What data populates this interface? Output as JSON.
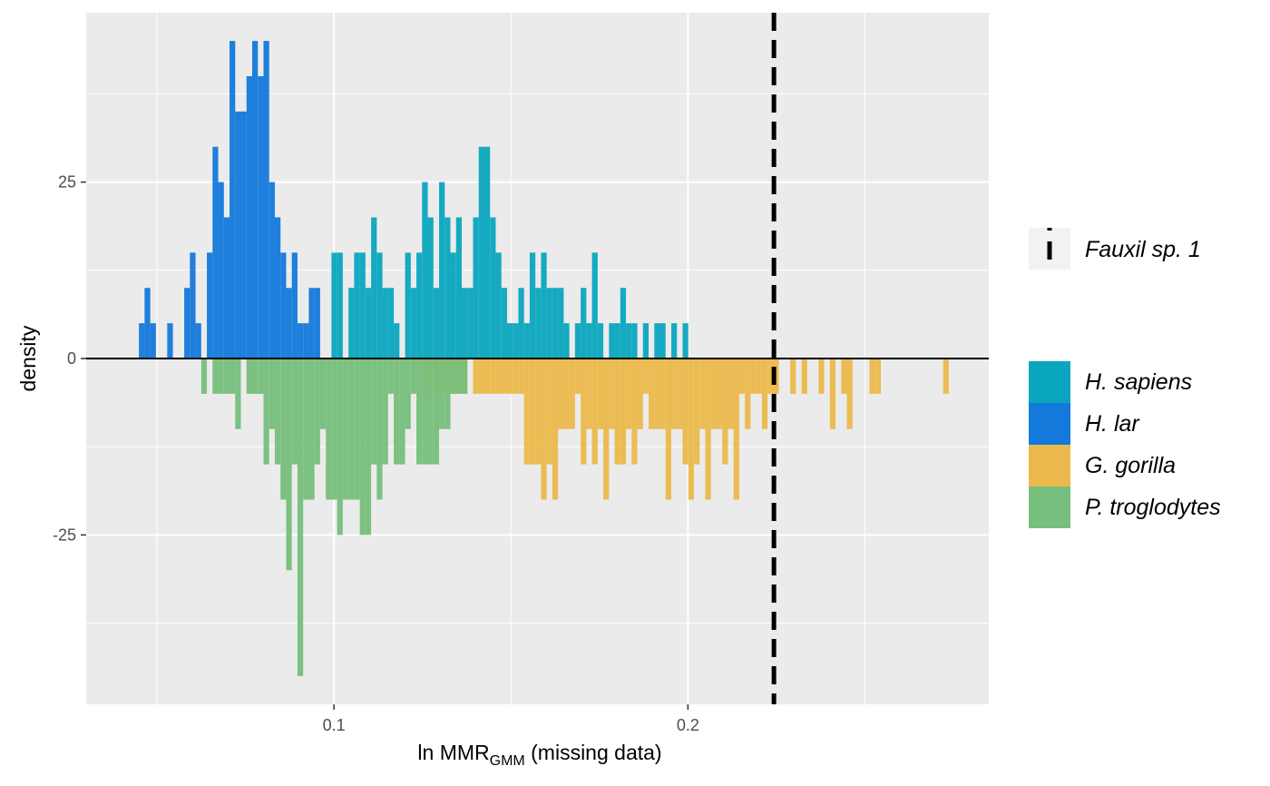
{
  "chart_data": {
    "type": "bar",
    "subtype": "mirrored histogram (density)",
    "xlabel": {
      "main": "ln MMR",
      "subscript": "GMM",
      "suffix": " (missing data)"
    },
    "ylabel": "density",
    "xlim": [
      0.03,
      0.285
    ],
    "ylim": [
      -49,
      49
    ],
    "bin_width": 0.0016,
    "x_ticks": [
      {
        "value": 0.1,
        "label": "0.1"
      },
      {
        "value": 0.2,
        "label": "0.2"
      }
    ],
    "y_ticks": [
      {
        "value": 25,
        "label": "25"
      },
      {
        "value": 0,
        "label": "0"
      },
      {
        "value": -25,
        "label": "-25"
      }
    ],
    "x_minor_gridlines": [
      0.05,
      0.15,
      0.25
    ],
    "y_minor_gridlines": [
      37.5,
      12.5,
      -12.5,
      -37.5
    ],
    "grid": true,
    "background": "#ebebeb",
    "zero_line": true,
    "reference_line": {
      "x": 0.2243,
      "style": "dashed",
      "color": "#000000",
      "label": "Fauxil sp. 1"
    },
    "legend_placement": "right",
    "legend_groups": [
      {
        "entries": [
          {
            "label": "Fauxil sp. 1",
            "key": "dashed-line"
          }
        ]
      },
      {
        "entries": [
          {
            "label": "H. sapiens",
            "color": "#0aa6bf"
          },
          {
            "label": "H. lar",
            "color": "#1379db"
          },
          {
            "label": "G. gorilla",
            "color": "#ebb94b"
          },
          {
            "label": "P. troglodytes",
            "color": "#77bf7c"
          }
        ]
      }
    ],
    "series": [
      {
        "name": "H. lar",
        "direction": "up",
        "color": "#1379db",
        "x": [
          0.0457,
          0.0473,
          0.0489,
          0.0537,
          0.0585,
          0.0601,
          0.0617,
          0.0649,
          0.0665,
          0.0681,
          0.0697,
          0.0713,
          0.0729,
          0.0745,
          0.0761,
          0.0777,
          0.0793,
          0.0809,
          0.0825,
          0.0841,
          0.0857,
          0.0873,
          0.0889,
          0.0905,
          0.0921,
          0.0937,
          0.0953
        ],
        "values": [
          5,
          10,
          5,
          5,
          10,
          15,
          5,
          15,
          30,
          25,
          20,
          45,
          35,
          35,
          40,
          45,
          40,
          45,
          25,
          20,
          15,
          10,
          15,
          5,
          5,
          10,
          10
        ]
      },
      {
        "name": "H. sapiens",
        "direction": "up",
        "color": "#0aa6bf",
        "x": [
          0.1001,
          0.1017,
          0.1049,
          0.1065,
          0.1081,
          0.1097,
          0.1113,
          0.1129,
          0.1145,
          0.1161,
          0.1177,
          0.1209,
          0.1225,
          0.1241,
          0.1257,
          0.1273,
          0.1289,
          0.1305,
          0.1321,
          0.1337,
          0.1353,
          0.1369,
          0.1385,
          0.1401,
          0.1417,
          0.1433,
          0.1449,
          0.1465,
          0.1481,
          0.1497,
          0.1513,
          0.1529,
          0.1545,
          0.1561,
          0.1577,
          0.1593,
          0.1609,
          0.1625,
          0.1641,
          0.1657,
          0.1689,
          0.1705,
          0.1721,
          0.1737,
          0.1753,
          0.1785,
          0.1801,
          0.1817,
          0.1833,
          0.1849,
          0.1881,
          0.1913,
          0.1929,
          0.1961,
          0.1993
        ],
        "values": [
          15,
          15,
          10,
          15,
          15,
          10,
          20,
          15,
          10,
          10,
          5,
          15,
          10,
          15,
          25,
          20,
          10,
          25,
          20,
          15,
          20,
          10,
          10,
          20,
          30,
          30,
          20,
          15,
          10,
          5,
          5,
          10,
          5,
          15,
          10,
          15,
          10,
          10,
          10,
          5,
          5,
          10,
          5,
          15,
          5,
          5,
          5,
          10,
          5,
          5,
          5,
          5,
          5,
          5,
          5
        ]
      },
      {
        "name": "G. gorilla",
        "direction": "down",
        "color": "#ebb94b",
        "x": [
          0.1257,
          0.1273,
          0.1289,
          0.1305,
          0.1321,
          0.1337,
          0.1353,
          0.1369,
          0.1401,
          0.1417,
          0.1433,
          0.1449,
          0.1465,
          0.1481,
          0.1497,
          0.1513,
          0.1529,
          0.1545,
          0.1561,
          0.1577,
          0.1593,
          0.1609,
          0.1625,
          0.1641,
          0.1657,
          0.1673,
          0.1689,
          0.1705,
          0.1721,
          0.1737,
          0.1753,
          0.1769,
          0.1785,
          0.1801,
          0.1817,
          0.1833,
          0.1849,
          0.1865,
          0.1881,
          0.1897,
          0.1913,
          0.1929,
          0.1945,
          0.1961,
          0.1977,
          0.1993,
          0.2009,
          0.2025,
          0.2041,
          0.2057,
          0.2073,
          0.2089,
          0.2105,
          0.2121,
          0.2137,
          0.2153,
          0.2169,
          0.2185,
          0.2201,
          0.2217,
          0.2233,
          0.2249,
          0.2297,
          0.2329,
          0.2377,
          0.2409,
          0.2441,
          0.2457,
          0.2521,
          0.2537,
          0.2729
        ],
        "values": [
          5,
          5,
          5,
          5,
          5,
          5,
          5,
          5,
          5,
          5,
          5,
          5,
          5,
          5,
          5,
          5,
          5,
          15,
          15,
          15,
          20,
          15,
          20,
          10,
          10,
          10,
          5,
          15,
          10,
          15,
          10,
          20,
          10,
          15,
          15,
          10,
          15,
          10,
          5,
          10,
          10,
          10,
          20,
          10,
          10,
          15,
          20,
          15,
          10,
          20,
          10,
          10,
          15,
          10,
          20,
          5,
          10,
          5,
          5,
          10,
          5,
          5,
          5,
          5,
          5,
          10,
          5,
          10,
          5,
          5,
          5
        ]
      },
      {
        "name": "P. troglodytes",
        "direction": "down",
        "color": "#77bf7c",
        "x": [
          0.0633,
          0.0665,
          0.0681,
          0.0697,
          0.0713,
          0.0729,
          0.0761,
          0.0777,
          0.0793,
          0.0809,
          0.0825,
          0.0841,
          0.0857,
          0.0873,
          0.0889,
          0.0905,
          0.0921,
          0.0937,
          0.0953,
          0.0969,
          0.0985,
          0.1001,
          0.1017,
          0.1033,
          0.1049,
          0.1065,
          0.1081,
          0.1097,
          0.1113,
          0.1129,
          0.1145,
          0.1161,
          0.1177,
          0.1193,
          0.1209,
          0.1225,
          0.1241,
          0.1257,
          0.1273,
          0.1289,
          0.1305,
          0.1321,
          0.1337,
          0.1353,
          0.1369
        ],
        "values": [
          5,
          5,
          5,
          5,
          5,
          10,
          5,
          5,
          5,
          15,
          10,
          15,
          20,
          30,
          15,
          45,
          20,
          20,
          15,
          10,
          20,
          20,
          25,
          20,
          20,
          20,
          25,
          25,
          15,
          20,
          15,
          5,
          15,
          15,
          10,
          5,
          15,
          15,
          15,
          15,
          10,
          10,
          5,
          5,
          5
        ]
      }
    ]
  }
}
